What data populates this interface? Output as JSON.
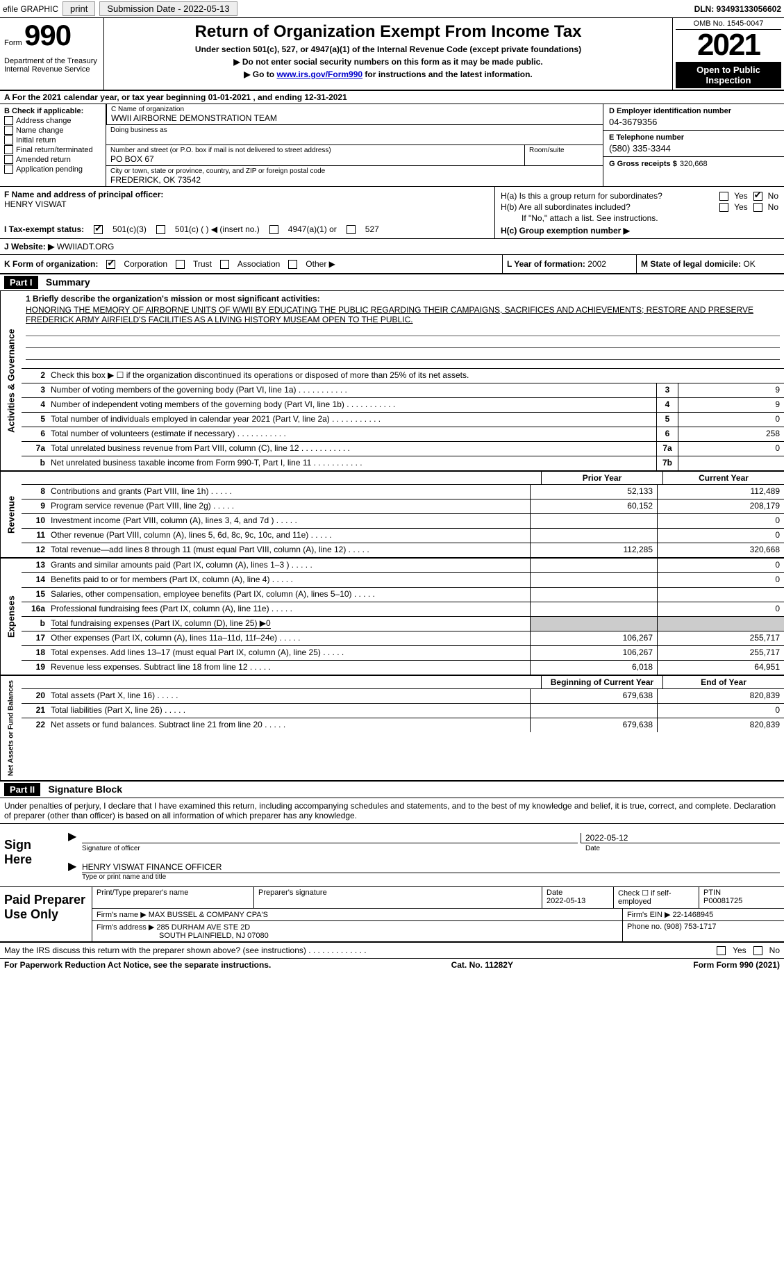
{
  "topbar": {
    "efile": "efile GRAPHIC",
    "print": "print",
    "submission_label": "Submission Date - 2022-05-13",
    "dln_label": "DLN: 93493133056602"
  },
  "header": {
    "form_word": "Form",
    "form_num": "990",
    "dept": "Department of the Treasury",
    "irs": "Internal Revenue Service",
    "title": "Return of Organization Exempt From Income Tax",
    "sub1": "Under section 501(c), 527, or 4947(a)(1) of the Internal Revenue Code (except private foundations)",
    "sub2_prefix": "▶ Do not enter social security numbers on this form as it may be made public.",
    "sub3_prefix": "▶ Go to ",
    "sub3_link": "www.irs.gov/Form990",
    "sub3_suffix": " for instructions and the latest information.",
    "omb": "OMB No. 1545-0047",
    "year": "2021",
    "inspection": "Open to Public Inspection"
  },
  "rowA": "A For the 2021 calendar year, or tax year beginning 01-01-2021   , and ending 12-31-2021",
  "colB": {
    "title": "B Check if applicable:",
    "opts": [
      "Address change",
      "Name change",
      "Initial return",
      "Final return/terminated",
      "Amended return",
      "Application pending"
    ]
  },
  "C": {
    "name_label": "C Name of organization",
    "name": "WWII AIRBORNE DEMONSTRATION TEAM",
    "dba_label": "Doing business as",
    "addr_label": "Number and street (or P.O. box if mail is not delivered to street address)",
    "room_label": "Room/suite",
    "addr": "PO BOX 67",
    "city_label": "City or town, state or province, country, and ZIP or foreign postal code",
    "city": "FREDERICK, OK  73542"
  },
  "D": {
    "label": "D Employer identification number",
    "value": "04-3679356"
  },
  "E": {
    "label": "E Telephone number",
    "value": "(580) 335-3344"
  },
  "G": {
    "label": "G Gross receipts $",
    "value": "320,668"
  },
  "F": {
    "label": "F Name and address of principal officer:",
    "value": "HENRY VISWAT"
  },
  "H": {
    "a_label": "H(a)  Is this a group return for subordinates?",
    "b_label": "H(b)  Are all subordinates included?",
    "b_note": "If \"No,\" attach a list. See instructions.",
    "c_label": "H(c)  Group exemption number ▶",
    "yes": "Yes",
    "no": "No"
  },
  "I": {
    "label": "I   Tax-exempt status:",
    "o1": "501(c)(3)",
    "o2": "501(c) (  ) ◀ (insert no.)",
    "o3": "4947(a)(1) or",
    "o4": "527"
  },
  "J": {
    "label": "J   Website: ▶",
    "value": "WWIIADT.ORG"
  },
  "K": {
    "label": "K Form of organization:",
    "corp": "Corporation",
    "trust": "Trust",
    "assoc": "Association",
    "other": "Other ▶"
  },
  "L": {
    "label": "L Year of formation:",
    "value": "2002"
  },
  "M": {
    "label": "M State of legal domicile:",
    "value": "OK"
  },
  "parts": {
    "p1": "Part I",
    "p1_title": "Summary",
    "p2": "Part II",
    "p2_title": "Signature Block"
  },
  "sideLabels": {
    "s1": "Activities & Governance",
    "s2": "Revenue",
    "s3": "Expenses",
    "s4": "Net Assets or Fund Balances"
  },
  "brief": {
    "label": "1   Briefly describe the organization's mission or most significant activities:",
    "text": "HONORING THE MEMORY OF AIRBORNE UNITS OF WWII BY EDUCATING THE PUBLIC REGARDING THEIR CAMPAIGNS, SACRIFICES AND ACHIEVEMENTS; RESTORE AND PRESERVE FREDERICK ARMY AIRFIELD'S FACILITIES AS A LIVING HISTORY MUSEAM OPEN TO THE PUBLIC."
  },
  "gov_lines": [
    {
      "n": "2",
      "t": "Check this box ▶ ☐ if the organization discontinued its operations or disposed of more than 25% of its net assets."
    },
    {
      "n": "3",
      "t": "Number of voting members of the governing body (Part VI, line 1a)",
      "box": "3",
      "v": "9"
    },
    {
      "n": "4",
      "t": "Number of independent voting members of the governing body (Part VI, line 1b)",
      "box": "4",
      "v": "9"
    },
    {
      "n": "5",
      "t": "Total number of individuals employed in calendar year 2021 (Part V, line 2a)",
      "box": "5",
      "v": "0"
    },
    {
      "n": "6",
      "t": "Total number of volunteers (estimate if necessary)",
      "box": "6",
      "v": "258"
    },
    {
      "n": "7a",
      "t": "Total unrelated business revenue from Part VIII, column (C), line 12",
      "box": "7a",
      "v": "0"
    },
    {
      "n": "b",
      "t": "Net unrelated business taxable income from Form 990-T, Part I, line 11",
      "box": "7b",
      "v": ""
    }
  ],
  "colHeaders": {
    "prior": "Prior Year",
    "current": "Current Year"
  },
  "rev_lines": [
    {
      "n": "8",
      "t": "Contributions and grants (Part VIII, line 1h)",
      "p": "52,133",
      "c": "112,489"
    },
    {
      "n": "9",
      "t": "Program service revenue (Part VIII, line 2g)",
      "p": "60,152",
      "c": "208,179"
    },
    {
      "n": "10",
      "t": "Investment income (Part VIII, column (A), lines 3, 4, and 7d )",
      "p": "",
      "c": "0"
    },
    {
      "n": "11",
      "t": "Other revenue (Part VIII, column (A), lines 5, 6d, 8c, 9c, 10c, and 11e)",
      "p": "",
      "c": "0"
    },
    {
      "n": "12",
      "t": "Total revenue—add lines 8 through 11 (must equal Part VIII, column (A), line 12)",
      "p": "112,285",
      "c": "320,668"
    }
  ],
  "exp_lines": [
    {
      "n": "13",
      "t": "Grants and similar amounts paid (Part IX, column (A), lines 1–3 )",
      "p": "",
      "c": "0"
    },
    {
      "n": "14",
      "t": "Benefits paid to or for members (Part IX, column (A), line 4)",
      "p": "",
      "c": "0"
    },
    {
      "n": "15",
      "t": "Salaries, other compensation, employee benefits (Part IX, column (A), lines 5–10)",
      "p": "",
      "c": ""
    },
    {
      "n": "16a",
      "t": "Professional fundraising fees (Part IX, column (A), line 11e)",
      "p": "",
      "c": "0"
    },
    {
      "n": "b",
      "t": "Total fundraising expenses (Part IX, column (D), line 25) ▶0",
      "shade": true
    },
    {
      "n": "17",
      "t": "Other expenses (Part IX, column (A), lines 11a–11d, 11f–24e)",
      "p": "106,267",
      "c": "255,717"
    },
    {
      "n": "18",
      "t": "Total expenses. Add lines 13–17 (must equal Part IX, column (A), line 25)",
      "p": "106,267",
      "c": "255,717"
    },
    {
      "n": "19",
      "t": "Revenue less expenses. Subtract line 18 from line 12",
      "p": "6,018",
      "c": "64,951"
    }
  ],
  "net_headers": {
    "begin": "Beginning of Current Year",
    "end": "End of Year"
  },
  "net_lines": [
    {
      "n": "20",
      "t": "Total assets (Part X, line 16)",
      "p": "679,638",
      "c": "820,839"
    },
    {
      "n": "21",
      "t": "Total liabilities (Part X, line 26)",
      "p": "",
      "c": "0"
    },
    {
      "n": "22",
      "t": "Net assets or fund balances. Subtract line 21 from line 20",
      "p": "679,638",
      "c": "820,839"
    }
  ],
  "sig": {
    "penalties": "Under penalties of perjury, I declare that I have examined this return, including accompanying schedules and statements, and to the best of my knowledge and belief, it is true, correct, and complete. Declaration of preparer (other than officer) is based on all information of which preparer has any knowledge.",
    "sign_here": "Sign Here",
    "sig_officer_label": "Signature of officer",
    "date_label": "Date",
    "date_value": "2022-05-12",
    "name_title": "HENRY VISWAT FINANCE OFFICER",
    "name_title_label": "Type or print name and title"
  },
  "paid": {
    "label": "Paid Preparer Use Only",
    "print_name_label": "Print/Type preparer's name",
    "sig_label": "Preparer's signature",
    "date_lab": "Date",
    "date_val": "2022-05-13",
    "check_label": "Check ☐ if self-employed",
    "ptin_label": "PTIN",
    "ptin": "P00081725",
    "firm_name_label": "Firm's name   ▶",
    "firm_name": "MAX BUSSEL & COMPANY CPA'S",
    "firm_ein_label": "Firm's EIN ▶",
    "firm_ein": "22-1468945",
    "firm_addr_label": "Firm's address ▶",
    "firm_addr1": "285 DURHAM AVE STE 2D",
    "firm_addr2": "SOUTH PLAINFIELD, NJ  07080",
    "phone_label": "Phone no.",
    "phone": "(908) 753-1717"
  },
  "footer": {
    "discuss": "May the IRS discuss this return with the preparer shown above? (see instructions)",
    "yes": "Yes",
    "no": "No",
    "paperwork": "For Paperwork Reduction Act Notice, see the separate instructions.",
    "cat": "Cat. No. 11282Y",
    "form": "Form 990 (2021)"
  }
}
